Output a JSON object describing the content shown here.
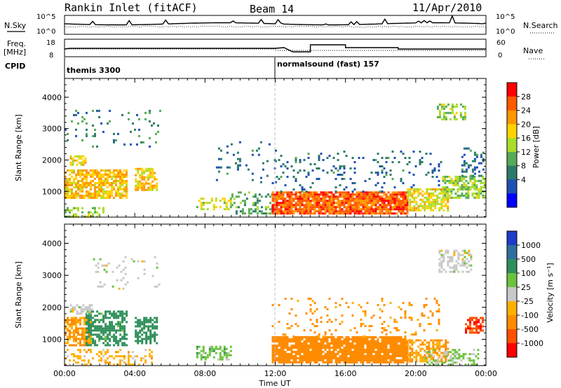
{
  "header": {
    "title": "Rankin Inlet (fitACF)",
    "beam": "Beam 14",
    "date": "11/Apr/2010"
  },
  "strips": {
    "nsky_label": "N.Sky",
    "nsky_ticks": [
      "10^5",
      "10^0"
    ],
    "nsearch_label": "N.Search",
    "nsearch_ticks": [
      "10^5",
      "10^0"
    ],
    "freq_label_1": "Freq.",
    "freq_label_2": "[MHz]",
    "freq_ticks": [
      "18",
      "8"
    ],
    "nave_label": "Nave",
    "nave_ticks": [
      "60",
      "0"
    ],
    "cpid_label": "CPID",
    "cpid_segments": [
      {
        "start_hour": 0,
        "label": "themis 3300"
      },
      {
        "start_hour": 12,
        "label": "normalsound (fast) 157"
      }
    ]
  },
  "colorbars": {
    "power": {
      "label": "Power [dB]",
      "ticks": [
        "28",
        "24",
        "20",
        "16",
        "12",
        "8",
        "4"
      ],
      "colors": [
        "#ff0000",
        "#ff5a00",
        "#ff9600",
        "#ffd200",
        "#aadc2a",
        "#55aa55",
        "#2a7a6a",
        "#1e50b4",
        "#0000ff"
      ]
    },
    "velocity": {
      "label": "Velocity [m s⁻¹]",
      "ticks": [
        "1000",
        "500",
        "100",
        "25",
        "-25",
        "-100",
        "-500",
        "-1000"
      ],
      "colors": [
        "#1e3cc8",
        "#2e6e9e",
        "#2f8f5a",
        "#6cc23e",
        "#c8c8c8",
        "#ffb000",
        "#ff8c00",
        "#ff5000",
        "#ff0000"
      ]
    }
  },
  "chart_data": [
    {
      "type": "heatmap",
      "name_field": "power",
      "ylabel": "Slant Range [km]",
      "xlabel": "",
      "xlim": [
        0,
        24
      ],
      "ylim": [
        180,
        4600
      ],
      "yticks": [
        1000,
        2000,
        3000,
        4000
      ],
      "ytick_labels": [
        "1000",
        "2000",
        "3000",
        "4000"
      ],
      "zlim": [
        0,
        30
      ],
      "regions": [
        {
          "x": [
            0.0,
            3.5
          ],
          "y": [
            800,
            1700
          ],
          "value": 20,
          "density": 0.75
        },
        {
          "x": [
            0.3,
            1.2
          ],
          "y": [
            1850,
            2150
          ],
          "value": 18,
          "density": 0.7
        },
        {
          "x": [
            4.0,
            5.2
          ],
          "y": [
            1050,
            1750
          ],
          "value": 20,
          "density": 0.7
        },
        {
          "x": [
            0.0,
            2.2
          ],
          "y": [
            180,
            500
          ],
          "value": 14,
          "density": 0.5
        },
        {
          "x": [
            0.0,
            5.5
          ],
          "y": [
            2400,
            3600
          ],
          "value": 8,
          "density": 0.08
        },
        {
          "x": [
            7.5,
            9.5
          ],
          "y": [
            400,
            800
          ],
          "value": 16,
          "density": 0.4
        },
        {
          "x": [
            9.5,
            11.8
          ],
          "y": [
            300,
            1000
          ],
          "value": 10,
          "density": 0.35
        },
        {
          "x": [
            8.5,
            12.0
          ],
          "y": [
            1300,
            2600
          ],
          "value": 6,
          "density": 0.08
        },
        {
          "x": [
            11.8,
            19.5
          ],
          "y": [
            300,
            1000
          ],
          "value": 26,
          "density": 0.9
        },
        {
          "x": [
            11.8,
            21.5
          ],
          "y": [
            1000,
            2300
          ],
          "value": 6,
          "density": 0.1
        },
        {
          "x": [
            19.5,
            21.8
          ],
          "y": [
            400,
            1100
          ],
          "value": 18,
          "density": 0.65
        },
        {
          "x": [
            21.5,
            24.0
          ],
          "y": [
            800,
            1500
          ],
          "value": 14,
          "density": 0.6
        },
        {
          "x": [
            21.2,
            22.8
          ],
          "y": [
            3300,
            3800
          ],
          "value": 14,
          "density": 0.55
        },
        {
          "x": [
            22.6,
            23.8
          ],
          "y": [
            1500,
            2400
          ],
          "value": 6,
          "density": 0.3
        }
      ]
    },
    {
      "type": "heatmap",
      "name_field": "velocity",
      "ylabel": "Slant Range [km]",
      "xlabel": "Time UT",
      "xlim": [
        0,
        24
      ],
      "ylim": [
        180,
        4600
      ],
      "xticks": [
        0,
        4,
        8,
        12,
        16,
        20,
        24
      ],
      "xtick_labels": [
        "00:00",
        "04:00",
        "08:00",
        "12:00",
        "16:00",
        "20:00",
        "00:00"
      ],
      "yticks": [
        1000,
        2000,
        3000,
        4000
      ],
      "ytick_labels": [
        "1000",
        "2000",
        "3000",
        "4000"
      ],
      "zlim": [
        -1000,
        1000
      ],
      "regions": [
        {
          "x": [
            0.0,
            1.5
          ],
          "y": [
            800,
            1700
          ],
          "value": -100,
          "density": 0.75
        },
        {
          "x": [
            1.2,
            3.5
          ],
          "y": [
            800,
            1900
          ],
          "value": 200,
          "density": 0.6
        },
        {
          "x": [
            0.3,
            1.5
          ],
          "y": [
            1800,
            2100
          ],
          "value": 0,
          "density": 0.6
        },
        {
          "x": [
            4.0,
            5.3
          ],
          "y": [
            900,
            1700
          ],
          "value": 300,
          "density": 0.6
        },
        {
          "x": [
            0.0,
            5.0
          ],
          "y": [
            200,
            700
          ],
          "value": -60,
          "density": 0.3
        },
        {
          "x": [
            1.5,
            5.5
          ],
          "y": [
            2600,
            3600
          ],
          "value": 0,
          "density": 0.1
        },
        {
          "x": [
            7.5,
            9.5
          ],
          "y": [
            400,
            800
          ],
          "value": 60,
          "density": 0.4
        },
        {
          "x": [
            11.8,
            19.5
          ],
          "y": [
            300,
            1100
          ],
          "value": -300,
          "density": 0.9
        },
        {
          "x": [
            11.8,
            21.5
          ],
          "y": [
            1100,
            2300
          ],
          "value": -150,
          "density": 0.1
        },
        {
          "x": [
            19.5,
            21.8
          ],
          "y": [
            300,
            1000
          ],
          "value": -100,
          "density": 0.6
        },
        {
          "x": [
            21.3,
            23.2
          ],
          "y": [
            3100,
            3800
          ],
          "value": 0,
          "density": 0.5
        },
        {
          "x": [
            22.8,
            23.8
          ],
          "y": [
            1200,
            1700
          ],
          "value": -800,
          "density": 0.6
        },
        {
          "x": [
            20.5,
            23.5
          ],
          "y": [
            200,
            700
          ],
          "value": 40,
          "density": 0.4
        }
      ]
    }
  ]
}
